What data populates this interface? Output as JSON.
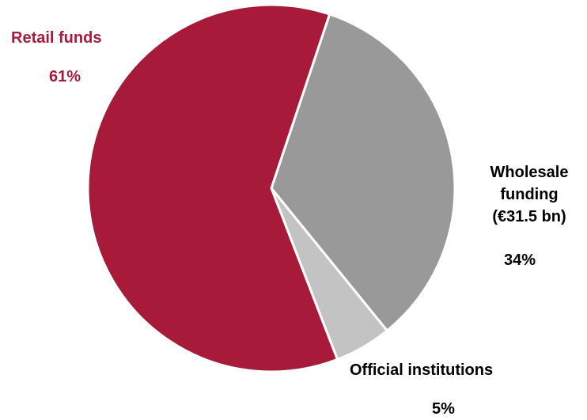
{
  "chart_data": {
    "type": "pie",
    "slices": [
      {
        "label": "Wholesale funding (€31.5 bn)",
        "label_lines": [
          "Wholesale",
          "funding",
          "(€31.5 bn)"
        ],
        "value": 34,
        "value_label": "34%",
        "color": "#999999",
        "label_color": "#000000"
      },
      {
        "label": "Official institutions",
        "label_lines": [
          "Official institutions"
        ],
        "value": 5,
        "value_label": "5%",
        "color": "#c3c3c3",
        "label_color": "#000000"
      },
      {
        "label": "Retail funds",
        "label_lines": [
          "Retail funds"
        ],
        "value": 61,
        "value_label": "61%",
        "color": "#a81a3a",
        "label_color": "#a81a3a"
      }
    ],
    "legend": "none"
  }
}
